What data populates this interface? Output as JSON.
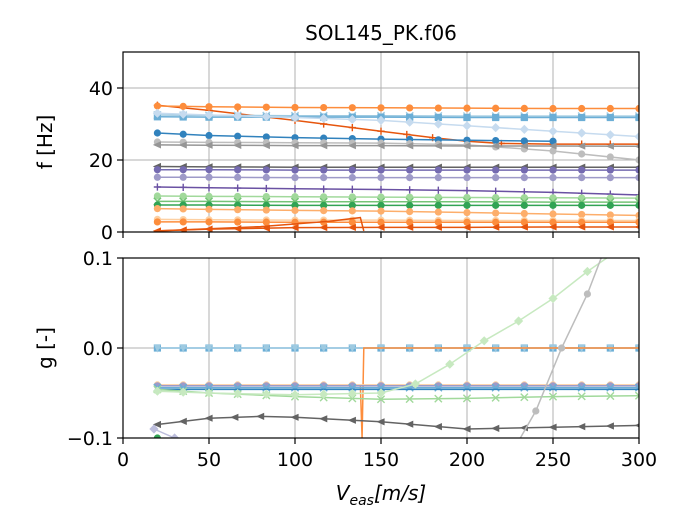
{
  "chart_data": {
    "type": "line",
    "title": "SOL145_PK.f06",
    "xlabel": "V",
    "xlabel_sub": "eas",
    "xlabel_unit": "[m/s]",
    "xlim": [
      0,
      300
    ],
    "xticks": [
      0,
      50,
      100,
      150,
      200,
      250,
      300
    ],
    "xtick_labels": [
      "0",
      "50",
      "100",
      "150",
      "200",
      "250",
      "300"
    ],
    "grid": true,
    "subplots": [
      {
        "id": "freq",
        "ylabel": "f [Hz]",
        "ylim": [
          0,
          50
        ],
        "yticks": [
          0,
          20,
          40
        ],
        "ytick_labels": [
          "0",
          "20",
          "40"
        ],
        "series": [
          {
            "color": "#e6550d",
            "marker": "plus",
            "x": [
              20,
              50,
              100,
              150,
              180,
              200,
              220,
              250,
              300
            ],
            "y": [
              35.2,
              33.8,
              31,
              28,
              26.2,
              25.2,
              24.6,
              24.4,
              24.4
            ]
          },
          {
            "color": "#fd8d3c",
            "marker": "circle",
            "x": [
              20,
              50,
              100,
              150,
              200,
              250,
              300
            ],
            "y": [
              35,
              34.8,
              34.6,
              34.5,
              34.4,
              34.3,
              34.3
            ]
          },
          {
            "color": "#9ecae1",
            "marker": "x",
            "x": [
              20,
              50,
              100,
              150,
              200,
              250,
              300
            ],
            "y": [
              32.5,
              32.4,
              32.3,
              32.3,
              32.2,
              32.2,
              32.2
            ]
          },
          {
            "color": "#6baed6",
            "marker": "square",
            "x": [
              20,
              50,
              100,
              150,
              200,
              250,
              300
            ],
            "y": [
              32,
              31.9,
              31.9,
              31.9,
              31.8,
              31.8,
              31.8
            ]
          },
          {
            "color": "#c6dbef",
            "marker": "diamond",
            "x": [
              20,
              50,
              100,
              150,
              200,
              250,
              300
            ],
            "y": [
              33,
              32.5,
              31.8,
              31,
              29.5,
              28,
              26.5
            ]
          },
          {
            "color": "#3182bd",
            "marker": "circle",
            "x": [
              20,
              50,
              100,
              150,
              200,
              250
            ],
            "y": [
              27.5,
              26.8,
              26.2,
              25.8,
              25.5,
              25.2
            ]
          },
          {
            "color": "#bdbdbd",
            "marker": "circle",
            "x": [
              20,
              50,
              100,
              150,
              200,
              250,
              300
            ],
            "y": [
              25,
              24.9,
              24.8,
              24.7,
              24.2,
              22.5,
              20
            ]
          },
          {
            "color": "#969696",
            "marker": "triangle-left",
            "x": [
              20,
              50,
              100,
              150,
              200,
              250,
              300
            ],
            "y": [
              24.2,
              24.1,
              24,
              24,
              23.9,
              23.9,
              23.8
            ]
          },
          {
            "color": "#636363",
            "marker": "triangle-left",
            "x": [
              20,
              50,
              100,
              150,
              200,
              250,
              300
            ],
            "y": [
              18.2,
              18.1,
              18,
              18,
              18,
              18,
              18
            ]
          },
          {
            "color": "#756bb1",
            "marker": "circle",
            "x": [
              20,
              50,
              100,
              150,
              200,
              250,
              300
            ],
            "y": [
              17.3,
              17.3,
              17.2,
              17.2,
              17.2,
              17.2,
              17.2
            ]
          },
          {
            "color": "#9e9ac8",
            "marker": "circle",
            "x": [
              20,
              50,
              100,
              150,
              200,
              250,
              300
            ],
            "y": [
              15.2,
              15.2,
              15.1,
              15.1,
              15.1,
              15.1,
              15.1
            ]
          },
          {
            "color": "#6a51a3",
            "marker": "plus",
            "x": [
              20,
              50,
              100,
              150,
              200,
              250,
              300
            ],
            "y": [
              12.5,
              12.3,
              12,
              11.8,
              11.5,
              11,
              10.3
            ]
          },
          {
            "color": "#a1d99b",
            "marker": "circle",
            "x": [
              20,
              50,
              100,
              150,
              200,
              250,
              300
            ],
            "y": [
              10,
              9.9,
              9.8,
              9.7,
              9.6,
              9.5,
              9.4
            ]
          },
          {
            "color": "#74c476",
            "marker": "x",
            "x": [
              20,
              50,
              100,
              150,
              200,
              250,
              300
            ],
            "y": [
              8.5,
              8.5,
              8.4,
              8.4,
              8.4,
              8.3,
              8.3
            ]
          },
          {
            "color": "#31a354",
            "marker": "circle",
            "x": [
              20,
              50,
              100,
              150,
              200,
              250,
              300
            ],
            "y": [
              7.5,
              7.5,
              7.4,
              7.4,
              7.4,
              7.4,
              7.4
            ]
          },
          {
            "color": "#fdae6b",
            "marker": "circle",
            "x": [
              20,
              50,
              100,
              150,
              200,
              250,
              300
            ],
            "y": [
              6.5,
              6.3,
              6,
              5.8,
              5.4,
              5,
              4.6
            ]
          },
          {
            "color": "#fdd0a2",
            "marker": "circle",
            "x": [
              20,
              50,
              100,
              150,
              200,
              250,
              300
            ],
            "y": [
              3.5,
              3.4,
              3.3,
              3.3,
              3.2,
              3.2,
              3.2
            ]
          },
          {
            "color": "#fd8d3c",
            "marker": "circle",
            "x": [
              20,
              50,
              100,
              150,
              200,
              250,
              300
            ],
            "y": [
              2.8,
              2.8,
              2.7,
              2.7,
              2.7,
              2.7,
              2.7
            ]
          },
          {
            "color": "#e6550d",
            "marker": "triangle-left",
            "x": [
              20,
              50,
              100,
              150,
              200,
              250,
              300
            ],
            "y": [
              0.3,
              0.8,
              1.2,
              1.3,
              1.3,
              1.4,
              1.4
            ]
          },
          {
            "color": "#e6550d",
            "marker": "none",
            "x": [
              20,
              80,
              120,
              138,
              140
            ],
            "y": [
              0.3,
              1.5,
              3,
              4,
              0.3
            ]
          }
        ]
      },
      {
        "id": "damp",
        "ylabel": "g [-]",
        "ylim": [
          -0.1,
          0.1
        ],
        "yticks": [
          -0.1,
          0.0,
          0.1
        ],
        "ytick_labels": [
          "−0.1",
          "0.0",
          "0.1"
        ],
        "series": [
          {
            "color": "#6baed6",
            "marker": "square",
            "x": [
              20,
              50,
              100,
              150,
              200,
              250,
              300
            ],
            "y": [
              0,
              0,
              0,
              0,
              0,
              0,
              0
            ]
          },
          {
            "color": "#9ecae1",
            "marker": "triangle-down",
            "x": [
              20,
              50,
              100,
              150,
              200,
              250,
              300
            ],
            "y": [
              0,
              0,
              0,
              0,
              0,
              0,
              0
            ]
          },
          {
            "color": "#fd8d3c",
            "marker": "none",
            "x": [
              20,
              80,
              138,
              139,
              140,
              200,
              250,
              300
            ],
            "y": [
              -0.042,
              -0.042,
              -0.042,
              -0.1,
              0,
              0,
              0,
              0
            ]
          },
          {
            "color": "#fdd0a2",
            "marker": "circle",
            "x": [
              20,
              50,
              100,
              150,
              200,
              250,
              300
            ],
            "y": [
              -0.041,
              -0.041,
              -0.041,
              -0.041,
              -0.041,
              -0.041,
              -0.041
            ]
          },
          {
            "color": "#9e9ac8",
            "marker": "circle",
            "x": [
              20,
              50,
              100,
              150,
              200,
              250,
              300
            ],
            "y": [
              -0.042,
              -0.042,
              -0.042,
              -0.042,
              -0.042,
              -0.042,
              -0.042
            ]
          },
          {
            "color": "#6baed6",
            "marker": "x",
            "x": [
              20,
              50,
              100,
              150,
              200,
              250,
              300
            ],
            "y": [
              -0.044,
              -0.044,
              -0.044,
              -0.044,
              -0.044,
              -0.044,
              -0.044
            ]
          },
          {
            "color": "#3182bd",
            "marker": "none",
            "x": [
              20,
              300
            ],
            "y": [
              -0.046,
              -0.046
            ]
          },
          {
            "color": "#a1d99b",
            "marker": "x",
            "x": [
              20,
              50,
              100,
              150,
              200,
              250,
              300
            ],
            "y": [
              -0.046,
              -0.05,
              -0.054,
              -0.057,
              -0.056,
              -0.054,
              -0.053
            ]
          },
          {
            "color": "#c7e9c0",
            "marker": "diamond",
            "x": [
              20,
              50,
              100,
              150,
              170,
              190,
              210,
              230,
              250,
              270,
              285
            ],
            "y": [
              -0.048,
              -0.05,
              -0.052,
              -0.05,
              -0.04,
              -0.018,
              0.008,
              0.03,
              0.055,
              0.085,
              0.105
            ]
          },
          {
            "color": "#636363",
            "marker": "triangle-left",
            "x": [
              20,
              50,
              80,
              100,
              150,
              200,
              250,
              300
            ],
            "y": [
              -0.085,
              -0.078,
              -0.076,
              -0.077,
              -0.082,
              -0.09,
              -0.088,
              -0.086
            ]
          },
          {
            "color": "#bdbdbd",
            "marker": "circle",
            "x": [
              228,
              240,
              255,
              270,
              280
            ],
            "y": [
              -0.11,
              -0.07,
              0,
              0.06,
              0.11
            ]
          },
          {
            "color": "#bcbddc",
            "marker": "diamond",
            "x": [
              18,
              30
            ],
            "y": [
              -0.09,
              -0.1
            ]
          },
          {
            "color": "#31a354",
            "marker": "circle",
            "x": [
              20
            ],
            "y": [
              -0.1
            ]
          }
        ]
      }
    ]
  }
}
